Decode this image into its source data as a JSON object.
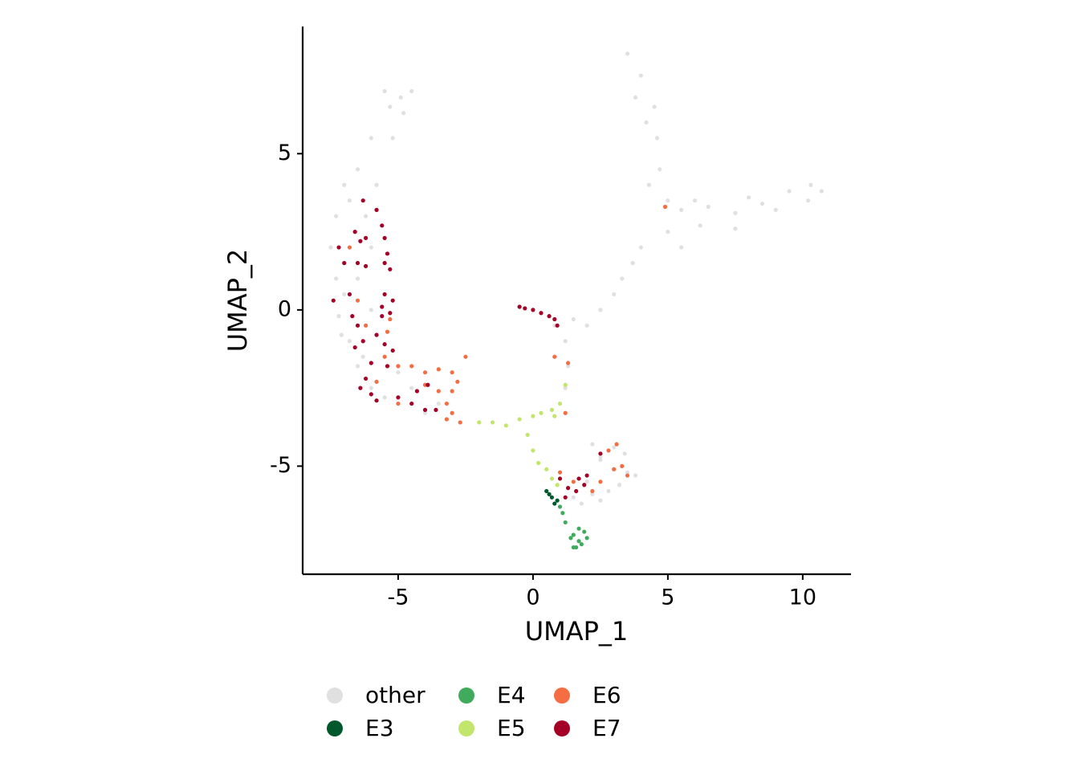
{
  "chart_data": {
    "type": "scatter",
    "x_label": "UMAP_1",
    "y_label": "UMAP_2",
    "xlim": [
      -8.54,
      11.79
    ],
    "ylim": [
      -8.46,
      9.07
    ],
    "xticks": [
      -5,
      0,
      5,
      10
    ],
    "yticks": [
      -5,
      0,
      5
    ],
    "grid": false,
    "legend": "bottom",
    "series": [
      {
        "name": "other",
        "color": "#e0e0e0",
        "x": [
          -5.5,
          -4.5,
          -4.8,
          -6,
          -6.5,
          -7,
          -7.3,
          -7.5,
          -7.3,
          -7,
          -7.2,
          -6.8,
          -6.5,
          -6,
          -5.5,
          -6,
          -6.5,
          -6.2,
          -5.8,
          -5.2,
          -6,
          -5,
          -4.5,
          -3.5,
          -4,
          -5.3,
          -4.9,
          -6.8,
          -7.1,
          -6.3,
          3.5,
          4,
          4.5,
          4.6,
          4.7,
          5,
          5.5,
          6.5,
          7.5,
          8.5,
          9.5,
          10.3,
          10.7,
          10.2,
          6,
          4.3,
          5,
          5.5,
          6.2,
          7.5,
          3.8,
          4.2,
          9,
          8,
          4,
          3.7,
          3.3,
          3,
          2.5,
          2,
          1.5,
          1.2,
          1.3,
          1.2,
          0.8,
          2.2,
          2.5,
          3,
          3.5,
          3.8,
          2.8,
          2.2,
          1.5,
          2.5,
          3.2,
          2,
          2.5,
          1.8,
          3.4
        ],
        "values": [
          7,
          7,
          6.3,
          5.5,
          4.5,
          4,
          3,
          2,
          1,
          0.5,
          -0.2,
          -1,
          -1.8,
          -2.5,
          -2.8,
          0,
          1,
          3,
          4,
          5.5,
          2,
          -2,
          -2.5,
          -3,
          -3.3,
          6.5,
          6.8,
          3.5,
          -0.8,
          -1.5,
          8.2,
          7.5,
          6.5,
          5.5,
          4.5,
          3.5,
          3.2,
          3.3,
          3.1,
          3.4,
          3.8,
          4,
          3.8,
          3.5,
          3.5,
          4,
          2.5,
          2,
          2.7,
          2.6,
          6.8,
          6,
          3.2,
          3.6,
          2,
          1.5,
          1,
          0.5,
          0,
          -0.5,
          -0.3,
          -1,
          -1.8,
          -2.5,
          -0.5,
          -4.3,
          -4.8,
          -4.4,
          -5.2,
          -5.3,
          -5.8,
          -5.9,
          -6,
          -6.1,
          -5.6,
          -5.5,
          -4.7,
          -6.2,
          -4.6
        ]
      },
      {
        "name": "E3",
        "color": "#00582b",
        "x": [
          0.5,
          0.7,
          0.8,
          0.6,
          0.9
        ],
        "values": [
          -5.8,
          -6,
          -6.2,
          -5.9,
          -6.1
        ]
      },
      {
        "name": "E4",
        "color": "#41ab5d",
        "x": [
          1.5,
          1.7,
          1.9,
          1.6,
          1.8,
          1.4,
          2,
          1.1,
          1,
          1.2,
          1.7,
          1.5
        ],
        "values": [
          -7.2,
          -7.4,
          -7.1,
          -7.6,
          -7.5,
          -7.3,
          -7.3,
          -6.5,
          -6.3,
          -6.8,
          -7,
          -7.6
        ]
      },
      {
        "name": "E5",
        "color": "#c2e66b",
        "x": [
          -1.5,
          -1,
          -0.5,
          0,
          0.3,
          0.7,
          1,
          1.2,
          -0.2,
          0,
          0.2,
          0.5,
          0.7,
          0.9,
          -2,
          0.8
        ],
        "values": [
          -3.6,
          -3.7,
          -3.5,
          -3.4,
          -3.3,
          -3.2,
          -3,
          -2.4,
          -4,
          -4.5,
          -4.9,
          -5.1,
          -5.4,
          -5.6,
          -3.6,
          -3.4
        ]
      },
      {
        "name": "E6",
        "color": "#f46d43",
        "x": [
          -5.5,
          -5,
          -4.5,
          -4,
          -3.5,
          -3,
          -2.8,
          -3,
          -3.2,
          -3.5,
          -4,
          -3,
          -2.7,
          -3.2,
          -2.5,
          -5.4,
          -6.2,
          -6.5,
          -5.3,
          -5.8,
          4.9,
          3.1,
          2.8,
          3.3,
          2.5,
          1.5,
          1,
          1.2,
          0.8,
          1.3,
          -6.8,
          3.5,
          3,
          2.2,
          -5
        ],
        "values": [
          -1.5,
          -1.8,
          -1.8,
          -2,
          -1.9,
          -2,
          -2.3,
          -2.6,
          -3,
          -2.6,
          -2.4,
          -3.3,
          -3.6,
          -3.5,
          -1.5,
          -0.7,
          -0.5,
          0.3,
          -0.3,
          -2.3,
          3.3,
          -4.3,
          -4.5,
          -5,
          -5.5,
          -5.5,
          -5.2,
          -3.3,
          -1.5,
          -1.7,
          2,
          -5.3,
          -5.1,
          -5.8,
          -3
        ]
      },
      {
        "name": "E7",
        "color": "#a50026",
        "x": [
          -6.3,
          -5.8,
          -5.6,
          -6.6,
          -6.4,
          -6.2,
          -7.2,
          -6.5,
          -5.5,
          -5.3,
          -6.2,
          -7,
          -7.4,
          -6.8,
          -5.5,
          -5.2,
          -5.3,
          -5.6,
          -6.7,
          -6.5,
          -5.8,
          -6.3,
          -6.6,
          -5.5,
          -5.2,
          -5.4,
          -6,
          -6.2,
          -6.4,
          -6,
          -5.8,
          -5,
          -4.5,
          -4,
          -3.6,
          -3.9,
          -4.3,
          -5.5,
          -5.4,
          -5.6,
          -0.5,
          -0.3,
          0,
          0.3,
          0.6,
          0.8,
          0.9,
          1,
          1.3,
          1.6,
          1.9,
          2,
          1.7,
          2.5,
          1.2
        ],
        "values": [
          3.5,
          3.2,
          2.7,
          2.5,
          2.2,
          2.3,
          2,
          1.5,
          1.5,
          1.3,
          1.4,
          1.5,
          0.3,
          0.5,
          0.5,
          0.3,
          -0.1,
          0.1,
          -0.2,
          -0.5,
          -0.8,
          -1,
          -1.2,
          -1.1,
          -1.3,
          -1.8,
          -1.7,
          -2.2,
          -2.5,
          -2.7,
          -2.9,
          -2.8,
          -3,
          -3.2,
          -3.2,
          -2.4,
          -2.6,
          2.3,
          1.8,
          -0.2,
          0.1,
          0.05,
          0,
          -0.1,
          -0.2,
          -0.3,
          -0.5,
          -5.4,
          -5.7,
          -5.8,
          -5.6,
          -5.3,
          -5.4,
          -4.6,
          -6
        ]
      }
    ]
  }
}
